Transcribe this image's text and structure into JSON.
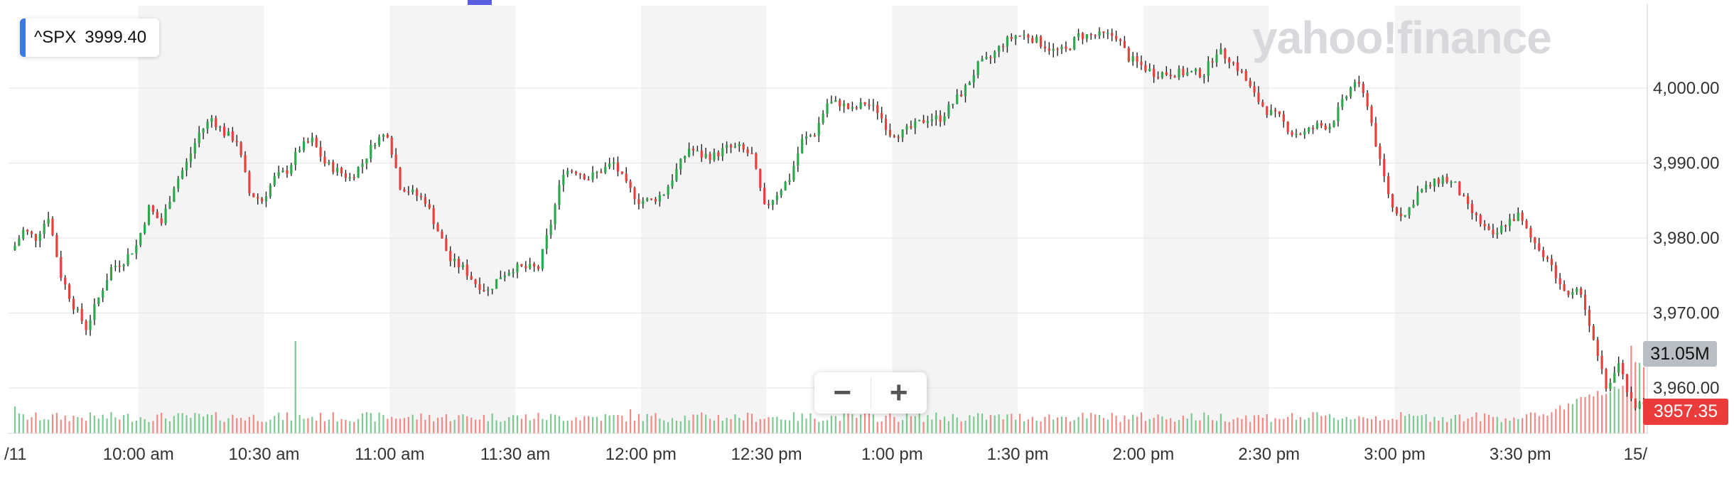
{
  "chart_data": {
    "type": "candlestick",
    "symbol": "^SPX",
    "symbol_price": "3999.40",
    "watermark": "yahoo!finance",
    "y_ticks": [
      "4,000.00",
      "3,990.00",
      "3,980.00",
      "3,970.00",
      "3,960.00"
    ],
    "y_tick_values": [
      4000,
      3990,
      3980,
      3970,
      3960
    ],
    "ylim": [
      3955.7,
      4009.6
    ],
    "x_labels": [
      "/11",
      "10:00 am",
      "10:30 am",
      "11:00 am",
      "11:30 am",
      "12:00 pm",
      "12:30 pm",
      "1:00 pm",
      "1:30 pm",
      "2:00 pm",
      "2:30 pm",
      "3:00 pm",
      "3:30 pm",
      "15/"
    ],
    "x_label_minutes": [
      0,
      30,
      60,
      90,
      120,
      150,
      180,
      210,
      240,
      270,
      300,
      330,
      360,
      390
    ],
    "session_minutes": 390,
    "shaded_bands_minutes": [
      [
        30,
        60
      ],
      [
        90,
        120
      ],
      [
        150,
        180
      ],
      [
        210,
        240
      ],
      [
        270,
        300
      ],
      [
        330,
        360
      ]
    ],
    "volume_tag": "31.05M",
    "price_tag": "3957.35",
    "colors": {
      "up": "#2ea84f",
      "down": "#e8403b",
      "wick": "#222222",
      "band": "#f4f4f4",
      "grid": "#e4e4e4"
    },
    "close_anchors": [
      [
        0,
        3978
      ],
      [
        3,
        3981
      ],
      [
        6,
        3980
      ],
      [
        9,
        3983
      ],
      [
        12,
        3975
      ],
      [
        15,
        3971
      ],
      [
        18,
        3968
      ],
      [
        21,
        3972
      ],
      [
        24,
        3976
      ],
      [
        27,
        3977
      ],
      [
        30,
        3979
      ],
      [
        33,
        3984
      ],
      [
        36,
        3982
      ],
      [
        39,
        3987
      ],
      [
        42,
        3990
      ],
      [
        45,
        3994
      ],
      [
        48,
        3996
      ],
      [
        51,
        3994
      ],
      [
        54,
        3993
      ],
      [
        57,
        3986
      ],
      [
        60,
        3985
      ],
      [
        63,
        3988
      ],
      [
        66,
        3989
      ],
      [
        69,
        3992
      ],
      [
        72,
        3993
      ],
      [
        75,
        3990
      ],
      [
        78,
        3989
      ],
      [
        81,
        3988
      ],
      [
        84,
        3990
      ],
      [
        87,
        3993
      ],
      [
        90,
        3994
      ],
      [
        93,
        3987
      ],
      [
        96,
        3986
      ],
      [
        99,
        3985
      ],
      [
        102,
        3981
      ],
      [
        105,
        3977
      ],
      [
        108,
        3976
      ],
      [
        111,
        3974
      ],
      [
        114,
        3973
      ],
      [
        117,
        3975
      ],
      [
        120,
        3976
      ],
      [
        123,
        3976
      ],
      [
        126,
        3976
      ],
      [
        129,
        3982
      ],
      [
        132,
        3989
      ],
      [
        135,
        3989
      ],
      [
        138,
        3988
      ],
      [
        141,
        3989
      ],
      [
        144,
        3990
      ],
      [
        147,
        3987
      ],
      [
        150,
        3985
      ],
      [
        153,
        3985
      ],
      [
        156,
        3986
      ],
      [
        159,
        3989
      ],
      [
        162,
        3992
      ],
      [
        165,
        3991
      ],
      [
        168,
        3991
      ],
      [
        171,
        3992
      ],
      [
        174,
        3992
      ],
      [
        177,
        3991
      ],
      [
        180,
        3984
      ],
      [
        183,
        3986
      ],
      [
        186,
        3988
      ],
      [
        189,
        3993
      ],
      [
        192,
        3994
      ],
      [
        195,
        3998
      ],
      [
        198,
        3998
      ],
      [
        201,
        3997
      ],
      [
        204,
        3998
      ],
      [
        207,
        3997
      ],
      [
        210,
        3994
      ],
      [
        213,
        3994
      ],
      [
        216,
        3995
      ],
      [
        219,
        3996
      ],
      [
        222,
        3996
      ],
      [
        225,
        3998
      ],
      [
        228,
        4000
      ],
      [
        231,
        4003
      ],
      [
        234,
        4004
      ],
      [
        237,
        4006
      ],
      [
        240,
        4007
      ],
      [
        243,
        4007
      ],
      [
        246,
        4006
      ],
      [
        249,
        4005
      ],
      [
        252,
        4005
      ],
      [
        255,
        4007
      ],
      [
        258,
        4007
      ],
      [
        261,
        4007
      ],
      [
        264,
        4007
      ],
      [
        267,
        4004
      ],
      [
        270,
        4003
      ],
      [
        273,
        4002
      ],
      [
        276,
        4002
      ],
      [
        279,
        4002
      ],
      [
        282,
        4002
      ],
      [
        285,
        4002
      ],
      [
        288,
        4005
      ],
      [
        291,
        4004
      ],
      [
        294,
        4002
      ],
      [
        297,
        3999
      ],
      [
        300,
        3997
      ],
      [
        303,
        3996
      ],
      [
        306,
        3994
      ],
      [
        309,
        3994
      ],
      [
        312,
        3995
      ],
      [
        315,
        3995
      ],
      [
        318,
        3998
      ],
      [
        321,
        4001
      ],
      [
        324,
        3998
      ],
      [
        327,
        3990
      ],
      [
        330,
        3984
      ],
      [
        333,
        3983
      ],
      [
        336,
        3986
      ],
      [
        339,
        3987
      ],
      [
        342,
        3988
      ],
      [
        345,
        3987
      ],
      [
        348,
        3984
      ],
      [
        351,
        3982
      ],
      [
        354,
        3980
      ],
      [
        357,
        3982
      ],
      [
        360,
        3983
      ],
      [
        363,
        3980
      ],
      [
        366,
        3978
      ],
      [
        369,
        3975
      ],
      [
        372,
        3972
      ],
      [
        375,
        3973
      ],
      [
        378,
        3966
      ],
      [
        381,
        3960
      ],
      [
        384,
        3963
      ],
      [
        387,
        3958
      ],
      [
        390,
        3957.35
      ]
    ]
  }
}
